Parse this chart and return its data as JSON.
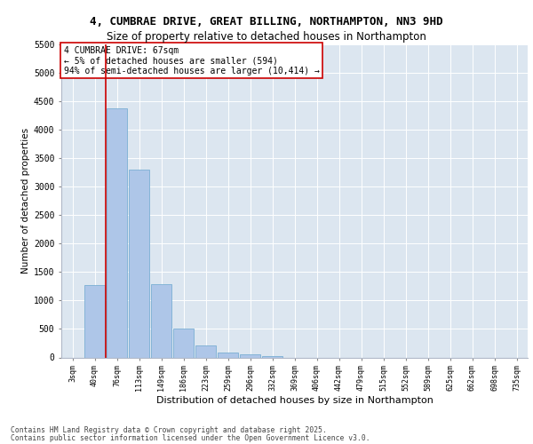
{
  "title_line1": "4, CUMBRAE DRIVE, GREAT BILLING, NORTHAMPTON, NN3 9HD",
  "title_line2": "Size of property relative to detached houses in Northampton",
  "xlabel": "Distribution of detached houses by size in Northampton",
  "ylabel": "Number of detached properties",
  "categories": [
    "3sqm",
    "40sqm",
    "76sqm",
    "113sqm",
    "149sqm",
    "186sqm",
    "223sqm",
    "259sqm",
    "296sqm",
    "332sqm",
    "369sqm",
    "406sqm",
    "442sqm",
    "479sqm",
    "515sqm",
    "552sqm",
    "589sqm",
    "625sqm",
    "662sqm",
    "698sqm",
    "735sqm"
  ],
  "bar_values": [
    0,
    1270,
    4380,
    3300,
    1280,
    500,
    215,
    80,
    55,
    30,
    0,
    0,
    0,
    0,
    0,
    0,
    0,
    0,
    0,
    0,
    0
  ],
  "bar_color": "#aec6e8",
  "bar_edge_color": "#7aafd4",
  "property_line_x": 1.5,
  "property_line_color": "#cc0000",
  "annotation_text": "4 CUMBRAE DRIVE: 67sqm\n← 5% of detached houses are smaller (594)\n94% of semi-detached houses are larger (10,414) →",
  "annotation_box_color": "#ffffff",
  "annotation_box_edge_color": "#cc0000",
  "ylim": [
    0,
    5500
  ],
  "yticks": [
    0,
    500,
    1000,
    1500,
    2000,
    2500,
    3000,
    3500,
    4000,
    4500,
    5000,
    5500
  ],
  "background_color": "#dce6f0",
  "grid_color": "#ffffff",
  "fig_background": "#ffffff",
  "footer_line1": "Contains HM Land Registry data © Crown copyright and database right 2025.",
  "footer_line2": "Contains public sector information licensed under the Open Government Licence v3.0."
}
